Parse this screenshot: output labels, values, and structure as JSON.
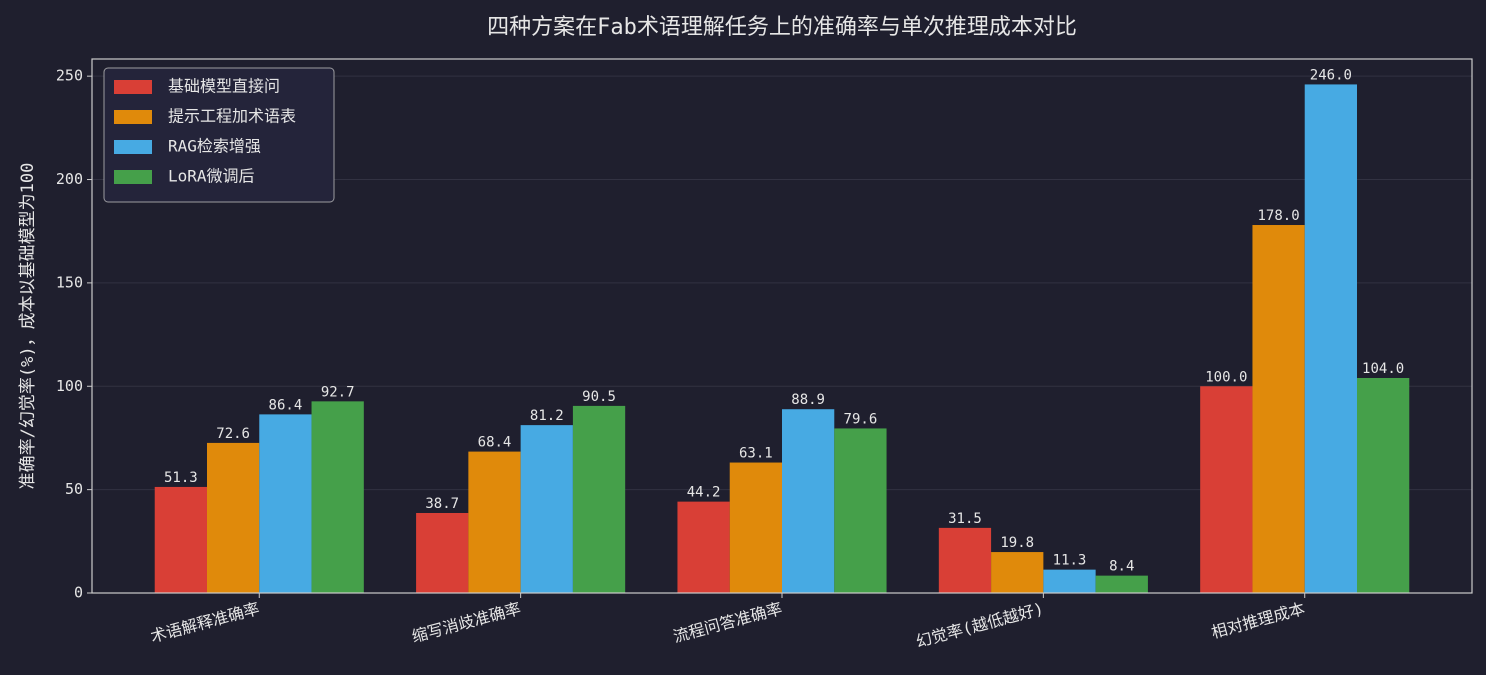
{
  "chart_data": {
    "type": "bar",
    "title": "四种方案在Fab术语理解任务上的准确率与单次推理成本对比",
    "y_label": "准确率/幻觉率(%)，成本以基础模型为100",
    "categories": [
      "术语解释准确率",
      "缩写消歧准确率",
      "流程问答准确率",
      "幻觉率(越低越好)",
      "相对推理成本"
    ],
    "series": [
      {
        "name": "基础模型直接问",
        "color": "#d93f36",
        "values": [
          51.3,
          38.7,
          44.2,
          31.5,
          100
        ],
        "value_labels": [
          "51.3",
          "38.7",
          "44.2",
          "31.5",
          "100.0"
        ]
      },
      {
        "name": "提示工程加术语表",
        "color": "#e08a0b",
        "values": [
          72.6,
          68.4,
          63.1,
          19.8,
          178
        ],
        "value_labels": [
          "72.6",
          "68.4",
          "63.1",
          "19.8",
          "178.0"
        ]
      },
      {
        "name": "RAG检索增强",
        "color": "#47aae3",
        "values": [
          86.4,
          81.2,
          88.9,
          11.3,
          246
        ],
        "value_labels": [
          "86.4",
          "81.2",
          "88.9",
          "11.3",
          "246.0"
        ]
      },
      {
        "name": "LoRA微调后",
        "color": "#45a04a",
        "values": [
          92.7,
          90.5,
          79.6,
          8.4,
          104
        ],
        "value_labels": [
          "92.7",
          "90.5",
          "79.6",
          "8.4",
          "104.0"
        ]
      }
    ],
    "ylim": [
      0,
      258.3
    ],
    "yticks": [
      0,
      50,
      100,
      150,
      200,
      250
    ],
    "grid": true,
    "legend": "upper left"
  }
}
